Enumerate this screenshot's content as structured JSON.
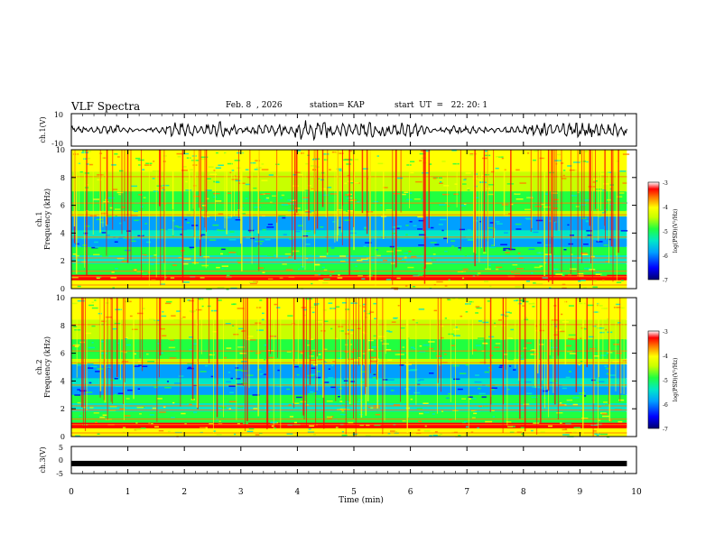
{
  "header": {
    "title": "VLF Spectra",
    "date": "Feb. 8  , 2026",
    "station": "station= KAP",
    "start": "start  UT  =   22: 20: 1"
  },
  "colors": {
    "background": "#ffffff",
    "axis": "#000000",
    "colormap": [
      "#00006e",
      "#0000ff",
      "#00a0ff",
      "#00e8c8",
      "#20ff40",
      "#c8ff00",
      "#ffff00",
      "#ff8000",
      "#ff0000",
      "#ffffff"
    ]
  },
  "chart_data": [
    {
      "id": "ch1-waveform",
      "type": "line",
      "ylabel": "ch.1(V)",
      "ylim": [
        -10,
        10
      ],
      "yticks": [
        "10",
        "-10"
      ],
      "x_range_min": [
        0,
        9.83
      ],
      "description_values": "noisy broadband waveform, amplitude roughly 3-8 V",
      "amplitude_points": [
        3,
        2,
        4,
        1,
        2,
        6,
        4,
        7,
        2,
        4,
        5,
        8,
        6,
        5,
        7,
        7,
        6,
        1,
        4,
        3,
        2,
        3,
        6,
        5,
        7,
        6,
        4
      ]
    },
    {
      "id": "ch1-spectrogram",
      "type": "heatmap",
      "ylabel": "ch.1\nFrequency (kHz)",
      "ylabel_line1": "ch.1",
      "ylabel_line2": "Frequency (kHz)",
      "ylim": [
        0,
        10
      ],
      "yticks": [
        "0",
        "2",
        "4",
        "6",
        "8",
        "10"
      ],
      "colorbar": {
        "label": "log(PSD)(V²/Hz)",
        "range": [
          -7,
          -3
        ],
        "ticks": [
          "-3",
          "-4",
          "-5",
          "-6",
          "-7"
        ]
      }
    },
    {
      "id": "ch2-spectrogram",
      "type": "heatmap",
      "ylabel_line1": "ch.2",
      "ylabel_line2": "Frequency (kHz)",
      "ylim": [
        0,
        10
      ],
      "yticks": [
        "0",
        "2",
        "4",
        "6",
        "8",
        "10"
      ],
      "colorbar": {
        "label": "log(PSD)(V²/Hz)",
        "range": [
          -7,
          -3
        ],
        "ticks": [
          "-3",
          "-4",
          "-5",
          "-6",
          "-7"
        ]
      }
    },
    {
      "id": "ch3-waveform",
      "type": "line",
      "ylabel": "ch.3(V)",
      "ylim": [
        -5,
        5
      ],
      "yticks": [
        "5",
        "0",
        "-5"
      ],
      "value": -1.3,
      "xlabel": "Time  (min)",
      "xlim": [
        0,
        10
      ],
      "xticks": [
        "0",
        "1",
        "2",
        "3",
        "4",
        "5",
        "6",
        "7",
        "8",
        "9",
        "10"
      ]
    }
  ]
}
